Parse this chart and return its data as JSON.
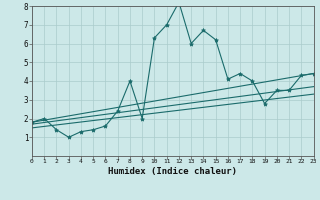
{
  "xlabel": "Humidex (Indice chaleur)",
  "bg_color": "#cce8e8",
  "line_color": "#1a6b6b",
  "grid_color": "#aacccc",
  "xlim": [
    0,
    23
  ],
  "ylim": [
    0,
    8
  ],
  "xticks": [
    0,
    1,
    2,
    3,
    4,
    5,
    6,
    7,
    8,
    9,
    10,
    11,
    12,
    13,
    14,
    15,
    16,
    17,
    18,
    19,
    20,
    21,
    22,
    23
  ],
  "yticks": [
    1,
    2,
    3,
    4,
    5,
    6,
    7,
    8
  ],
  "line1_x": [
    0,
    1,
    2,
    3,
    4,
    5,
    6,
    7,
    8,
    9,
    10,
    11,
    12,
    13,
    14,
    15,
    16,
    17,
    18,
    19,
    20,
    21,
    22,
    23
  ],
  "line1_y": [
    1.8,
    2.0,
    1.4,
    1.0,
    1.3,
    1.4,
    1.6,
    2.4,
    4.0,
    2.0,
    6.3,
    7.0,
    8.2,
    6.0,
    6.7,
    6.2,
    4.1,
    4.4,
    4.0,
    2.8,
    3.5,
    3.5,
    4.3,
    4.4
  ],
  "line2_x": [
    0,
    23
  ],
  "line2_y": [
    1.8,
    4.4
  ],
  "line3_x": [
    0,
    23
  ],
  "line3_y": [
    1.7,
    3.7
  ],
  "line4_x": [
    0,
    23
  ],
  "line4_y": [
    1.5,
    3.3
  ]
}
